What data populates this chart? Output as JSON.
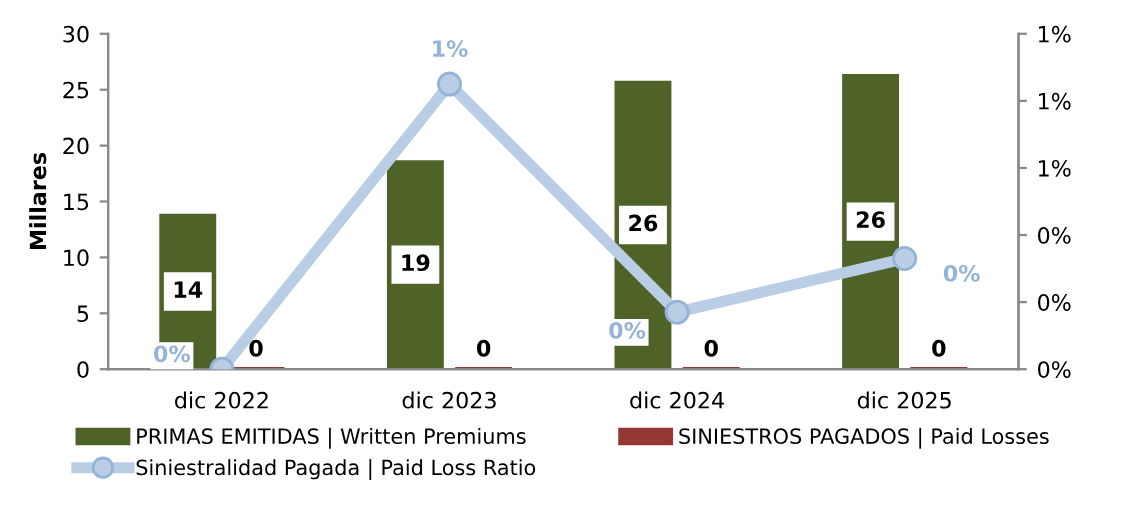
{
  "chart_data": {
    "type": "bar",
    "ylabel": "Millares",
    "categories": [
      "dic 2022",
      "dic 2023",
      "dic 2024",
      "dic 2025"
    ],
    "series": [
      {
        "name": "PRIMAS EMITIDAS | Written Premiums",
        "color": "#4f6228",
        "values": [
          13.9,
          18.7,
          25.8,
          26.4
        ],
        "value_labels": [
          "14",
          "19",
          "26",
          "26"
        ]
      },
      {
        "name": "SINIESTROS PAGADOS | Paid Losses",
        "color": "#953735",
        "values": [
          0.2,
          0.2,
          0.2,
          0.2
        ],
        "value_labels": [
          "0",
          "0",
          "0",
          "0"
        ]
      },
      {
        "name": "Siniestralidad Pagada | Paid Loss Ratio",
        "type": "line",
        "axis": "y2",
        "color": "#b9cde5",
        "marker": "circle",
        "values": [
          0,
          0.85,
          0.17,
          0.33
        ],
        "value_labels": [
          "0%",
          "1%",
          "0%",
          "0%"
        ]
      }
    ],
    "ylim": [
      0,
      30
    ],
    "yticks": [
      0,
      5,
      10,
      15,
      20,
      25,
      30
    ],
    "y2lim": [
      0,
      1
    ],
    "y2ticks": [
      {
        "value": 0,
        "label": "0%"
      },
      {
        "value": 0.2,
        "label": "0%"
      },
      {
        "value": 0.4,
        "label": "0%"
      },
      {
        "value": 0.6,
        "label": "1%"
      },
      {
        "value": 0.8,
        "label": "1%"
      },
      {
        "value": 1,
        "label": "1%"
      }
    ],
    "grid": false,
    "legend": "bottom"
  }
}
